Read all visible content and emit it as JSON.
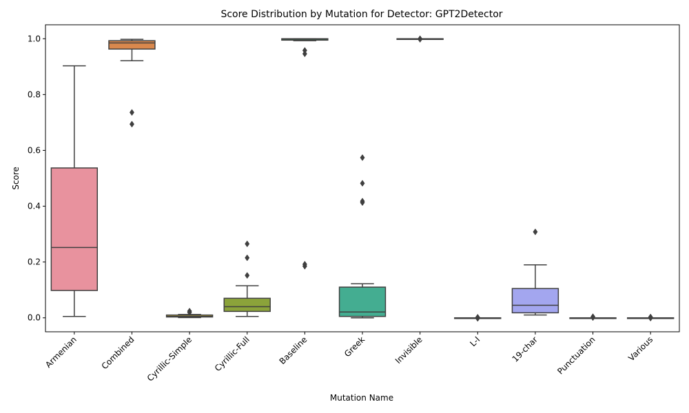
{
  "chart_data": {
    "type": "box",
    "title": "Score Distribution by Mutation for Detector: GPT2Detector",
    "xlabel": "Mutation Name",
    "ylabel": "Score",
    "ylim": [
      -0.05,
      1.05
    ],
    "yticks": [
      "0.0",
      "0.2",
      "0.4",
      "0.6",
      "0.8",
      "1.0"
    ],
    "grid": false,
    "categories": [
      "Armenian",
      "Combined",
      "Cyrillic-Simple",
      "Cyrillic-Full",
      "Baseline",
      "Greek",
      "Invisible",
      "L-I",
      "19-char",
      "Punctuation",
      "Various"
    ],
    "boxes": [
      {
        "name": "Armenian",
        "color": "#e8929e",
        "whisker_low": 0.005,
        "q1": 0.098,
        "median": 0.252,
        "q3": 0.537,
        "whisker_high": 0.903,
        "outliers": []
      },
      {
        "name": "Combined",
        "color": "#d9884d",
        "whisker_low": 0.921,
        "q1": 0.963,
        "median": 0.985,
        "q3": 0.993,
        "whisker_high": 0.998,
        "outliers": [
          0.736,
          0.694
        ]
      },
      {
        "name": "Cyrillic-Simple",
        "color": "#b4a43d",
        "whisker_low": 0.001,
        "q1": 0.003,
        "median": 0.005,
        "q3": 0.01,
        "whisker_high": 0.012,
        "outliers": [
          0.024,
          0.019
        ]
      },
      {
        "name": "Cyrillic-Full",
        "color": "#8ba33a",
        "whisker_low": 0.005,
        "q1": 0.023,
        "median": 0.04,
        "q3": 0.07,
        "whisker_high": 0.115,
        "outliers": [
          0.265,
          0.215,
          0.152
        ]
      },
      {
        "name": "Baseline",
        "color": "#3da862",
        "whisker_low": 0.993,
        "q1": 0.995,
        "median": 0.999,
        "q3": 1.0,
        "whisker_high": 1.0,
        "outliers": [
          0.958,
          0.946,
          0.192,
          0.185
        ]
      },
      {
        "name": "Greek",
        "color": "#44ad91",
        "whisker_low": 0.0,
        "q1": 0.005,
        "median": 0.021,
        "q3": 0.11,
        "whisker_high": 0.122,
        "outliers": [
          0.574,
          0.482,
          0.418,
          0.413
        ]
      },
      {
        "name": "Invisible",
        "color": "#48aab4",
        "whisker_low": 0.999,
        "q1": 0.9995,
        "median": 1.0,
        "q3": 1.0,
        "whisker_high": 1.0,
        "outliers": [
          1.0,
          0.998
        ]
      },
      {
        "name": "L-I",
        "color": "#5ba8d6",
        "whisker_low": 0.0,
        "q1": 0.0,
        "median": 0.0,
        "q3": 0.0,
        "whisker_high": 0.0,
        "outliers": [
          0.002,
          -0.002
        ]
      },
      {
        "name": "19-char",
        "color": "#a3a6ef",
        "whisker_low": 0.01,
        "q1": 0.018,
        "median": 0.045,
        "q3": 0.105,
        "whisker_high": 0.19,
        "outliers": [
          0.308
        ]
      },
      {
        "name": "Punctuation",
        "color": "#d59be8",
        "whisker_low": 0.0,
        "q1": 0.0,
        "median": 0.0,
        "q3": 0.0,
        "whisker_high": 0.0,
        "outliers": [
          0.004,
          0.001
        ]
      },
      {
        "name": "Various",
        "color": "#ee93c6",
        "whisker_low": 0.0,
        "q1": 0.0,
        "median": 0.0,
        "q3": 0.0,
        "whisker_high": 0.0,
        "outliers": [
          0.003,
          -0.001
        ]
      }
    ]
  }
}
